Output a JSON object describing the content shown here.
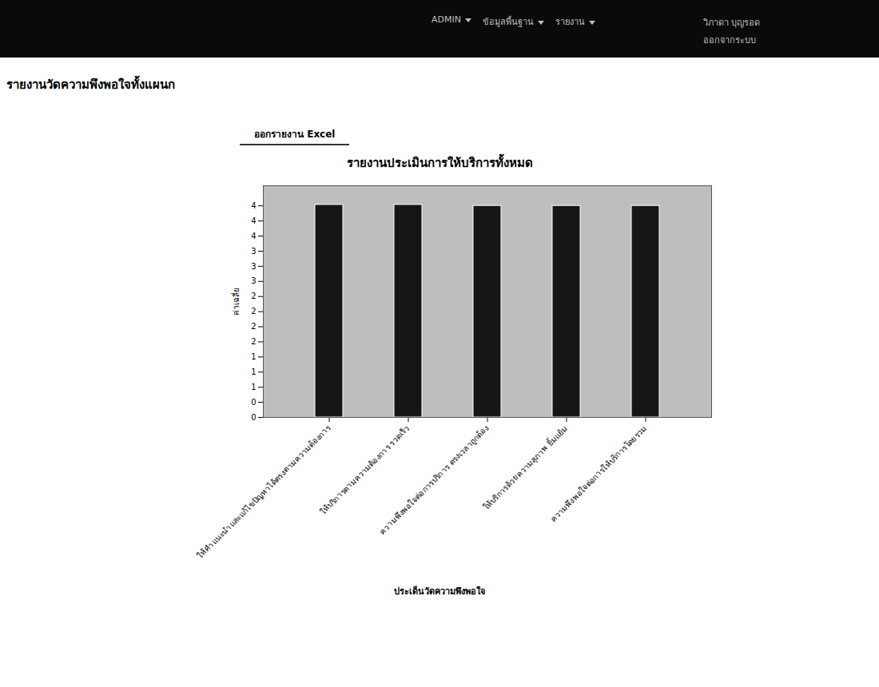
{
  "header": {
    "menu": [
      "ADMIN",
      "ข้อมูลพื้นฐาน",
      "รายงาน"
    ],
    "user": "วิภาดา บุญรอด",
    "logout": "ออกจากระบบ"
  },
  "page": {
    "title": "รายงานวัดความพึงพอใจทั้งแผนก",
    "button": "ออกรายงาน Excel"
  },
  "chart_data": {
    "type": "bar",
    "title": "รายงานประเมินการให้บริการทั้งหมด",
    "x_label": "ประเด็นวัดความพึงพอใจ",
    "y_label": "ค่าเฉลี่ย",
    "categories": [
      "ให้คำแนะนำและแก้ไขปัญหาได้ตรงตามความต้องการ",
      "ให้บริการตามความต้องการ รวดเร็ว",
      "ความพึงพอใจต่อการบริการ ตรงเวลาถูกต้อง",
      "ให้บริการด้วยความสุภาพ ยิ้มแย้ม",
      "ความพึงพอใจต่อการให้บริการโดยรวม"
    ],
    "values": [
      4.22,
      4.22,
      4.2,
      4.2,
      4.2
    ],
    "color": "#161616",
    "ylim": [
      0,
      4.6
    ],
    "yticks": [
      {
        "value": 0,
        "label": "0"
      },
      {
        "value": 0.3,
        "label": "0"
      },
      {
        "value": 0.6,
        "label": "1"
      },
      {
        "value": 0.9,
        "label": "1"
      },
      {
        "value": 1.2,
        "label": "1"
      },
      {
        "value": 1.5,
        "label": "2"
      },
      {
        "value": 1.8,
        "label": "2"
      },
      {
        "value": 2.1,
        "label": "2"
      },
      {
        "value": 2.4,
        "label": "2"
      },
      {
        "value": 2.7,
        "label": "3"
      },
      {
        "value": 3,
        "label": "3"
      },
      {
        "value": 3.3,
        "label": "3"
      },
      {
        "value": 3.6,
        "label": "4"
      },
      {
        "value": 3.9,
        "label": "4"
      },
      {
        "value": 4.2,
        "label": "4"
      }
    ],
    "grid": false
  }
}
